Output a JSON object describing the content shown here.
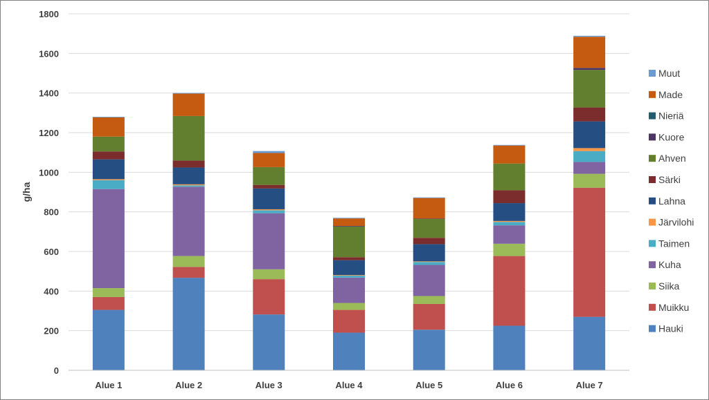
{
  "chart_data": {
    "type": "bar",
    "stacked": true,
    "title": "",
    "xlabel": "",
    "ylabel": "g/ha",
    "ylim": [
      0,
      1800
    ],
    "yticks": [
      0,
      200,
      400,
      600,
      800,
      1000,
      1200,
      1400,
      1600,
      1800
    ],
    "grid": true,
    "legend_position": "right",
    "categories": [
      "Alue 1",
      "Alue 2",
      "Alue 3",
      "Alue 4",
      "Alue 5",
      "Alue 6",
      "Alue 7"
    ],
    "series": [
      {
        "name": "Hauki",
        "color": "#4f81bd",
        "values": [
          305,
          467,
          282,
          190,
          205,
          225,
          270
        ]
      },
      {
        "name": "Muikku",
        "color": "#c0504d",
        "values": [
          65,
          55,
          178,
          115,
          130,
          352,
          652
        ]
      },
      {
        "name": "Siika",
        "color": "#9bbb59",
        "values": [
          45,
          55,
          50,
          35,
          40,
          62,
          70
        ]
      },
      {
        "name": "Kuha",
        "color": "#8064a2",
        "values": [
          500,
          350,
          283,
          128,
          157,
          93,
          60
        ]
      },
      {
        "name": "Taimen",
        "color": "#4bacc6",
        "values": [
          45,
          7,
          15,
          10,
          15,
          17,
          55
        ]
      },
      {
        "name": "Järvilohi",
        "color": "#f79646",
        "values": [
          5,
          5,
          5,
          3,
          3,
          5,
          15
        ]
      },
      {
        "name": "Lahna",
        "color": "#254f82",
        "values": [
          100,
          85,
          105,
          75,
          87,
          90,
          135
        ]
      },
      {
        "name": "Särki",
        "color": "#7b2c2c",
        "values": [
          40,
          35,
          18,
          15,
          32,
          65,
          70
        ]
      },
      {
        "name": "Ahven",
        "color": "#627f30",
        "values": [
          75,
          225,
          90,
          155,
          95,
          135,
          190
        ]
      },
      {
        "name": "Kuore",
        "color": "#4b3563",
        "values": [
          0,
          0,
          0,
          3,
          2,
          0,
          10
        ]
      },
      {
        "name": "Nieriä",
        "color": "#215d6e",
        "values": [
          0,
          0,
          0,
          0,
          0,
          0,
          0
        ]
      },
      {
        "name": "Made",
        "color": "#c55a11",
        "values": [
          97,
          113,
          71,
          38,
          104,
          91,
          157
        ]
      },
      {
        "name": "Muut",
        "color": "#6c9bd2",
        "values": [
          3,
          3,
          10,
          3,
          3,
          3,
          5
        ]
      }
    ]
  }
}
